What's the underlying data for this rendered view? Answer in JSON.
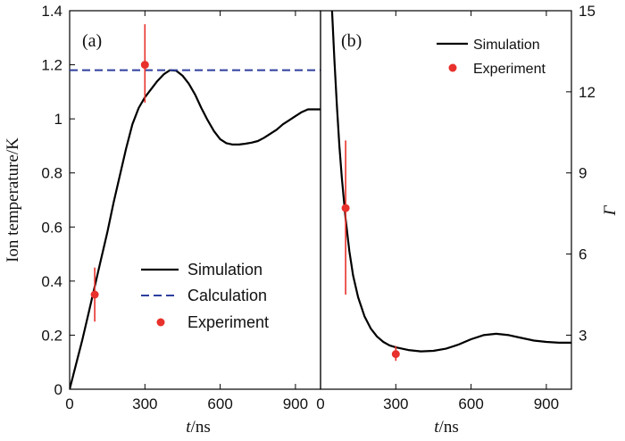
{
  "chart_data": [
    {
      "panel": "(a)",
      "type": "line",
      "xlabel_italic": "t",
      "xlabel_rest": "/ns",
      "ylabel": "Ion temperature/K",
      "xlim": [
        0,
        1000
      ],
      "ylim": [
        0,
        1.4
      ],
      "x_ticks": [
        0,
        300,
        600,
        900
      ],
      "y_ticks": [
        0,
        0.2,
        0.4,
        0.6,
        0.8,
        1,
        1.2,
        1.4
      ],
      "y_tick_labels": [
        "0",
        "0.2",
        "0.4",
        "0.6",
        "0.8",
        "1",
        "1.2",
        "1.4"
      ],
      "legend_position": "bottom-center",
      "series": [
        {
          "name": "Simulation",
          "style": "solid",
          "color": "#000000",
          "x": [
            0,
            25,
            50,
            75,
            100,
            125,
            150,
            175,
            200,
            225,
            250,
            275,
            300,
            325,
            350,
            375,
            400,
            425,
            450,
            475,
            500,
            525,
            550,
            575,
            600,
            625,
            650,
            675,
            700,
            725,
            750,
            775,
            800,
            825,
            850,
            875,
            900,
            925,
            950,
            975,
            1000
          ],
          "y": [
            0,
            0.09,
            0.18,
            0.28,
            0.38,
            0.48,
            0.58,
            0.69,
            0.79,
            0.89,
            0.98,
            1.04,
            1.08,
            1.11,
            1.14,
            1.165,
            1.18,
            1.178,
            1.16,
            1.13,
            1.09,
            1.04,
            0.995,
            0.955,
            0.925,
            0.91,
            0.905,
            0.905,
            0.908,
            0.912,
            0.918,
            0.93,
            0.945,
            0.96,
            0.98,
            0.995,
            1.01,
            1.025,
            1.035,
            1.035,
            1.035
          ]
        },
        {
          "name": "Calculation",
          "style": "dashed",
          "color": "#2e3f9e",
          "x": [
            0,
            1000
          ],
          "y": [
            1.18,
            1.18
          ]
        },
        {
          "name": "Experiment",
          "style": "marker",
          "color": "#e8312c",
          "x": [
            100,
            300
          ],
          "y": [
            0.35,
            1.2
          ],
          "err_low": [
            0.25,
            1.06
          ],
          "err_high": [
            0.45,
            1.35
          ]
        }
      ]
    },
    {
      "panel": "(b)",
      "type": "line",
      "xlabel_italic": "t",
      "xlabel_rest": "/ns",
      "ylabel": "Γ",
      "xlim": [
        0,
        1000
      ],
      "ylim": [
        1,
        15
      ],
      "x_ticks": [
        0,
        300,
        600,
        900
      ],
      "y_ticks": [
        3,
        6,
        9,
        12,
        15
      ],
      "y_tick_labels": [
        "3",
        "6",
        "9",
        "12",
        "15"
      ],
      "legend_position": "top-right",
      "series": [
        {
          "name": "Simulation",
          "style": "solid",
          "color": "#000000",
          "x": [
            45,
            55,
            65,
            75,
            85,
            100,
            115,
            130,
            150,
            175,
            200,
            225,
            250,
            275,
            300,
            350,
            400,
            450,
            500,
            550,
            600,
            650,
            700,
            750,
            800,
            850,
            900,
            950,
            1000
          ],
          "y": [
            15.2,
            13.2,
            11.5,
            10.0,
            8.8,
            7.3,
            6.1,
            5.2,
            4.4,
            3.7,
            3.25,
            2.95,
            2.75,
            2.62,
            2.55,
            2.45,
            2.4,
            2.42,
            2.5,
            2.65,
            2.85,
            3.0,
            3.05,
            3.0,
            2.9,
            2.8,
            2.75,
            2.72,
            2.72
          ]
        },
        {
          "name": "Experiment",
          "style": "marker",
          "color": "#e8312c",
          "x": [
            100,
            300
          ],
          "y": [
            7.7,
            2.3
          ],
          "err_low": [
            4.5,
            2.05
          ],
          "err_high": [
            10.2,
            2.6
          ]
        }
      ]
    }
  ]
}
